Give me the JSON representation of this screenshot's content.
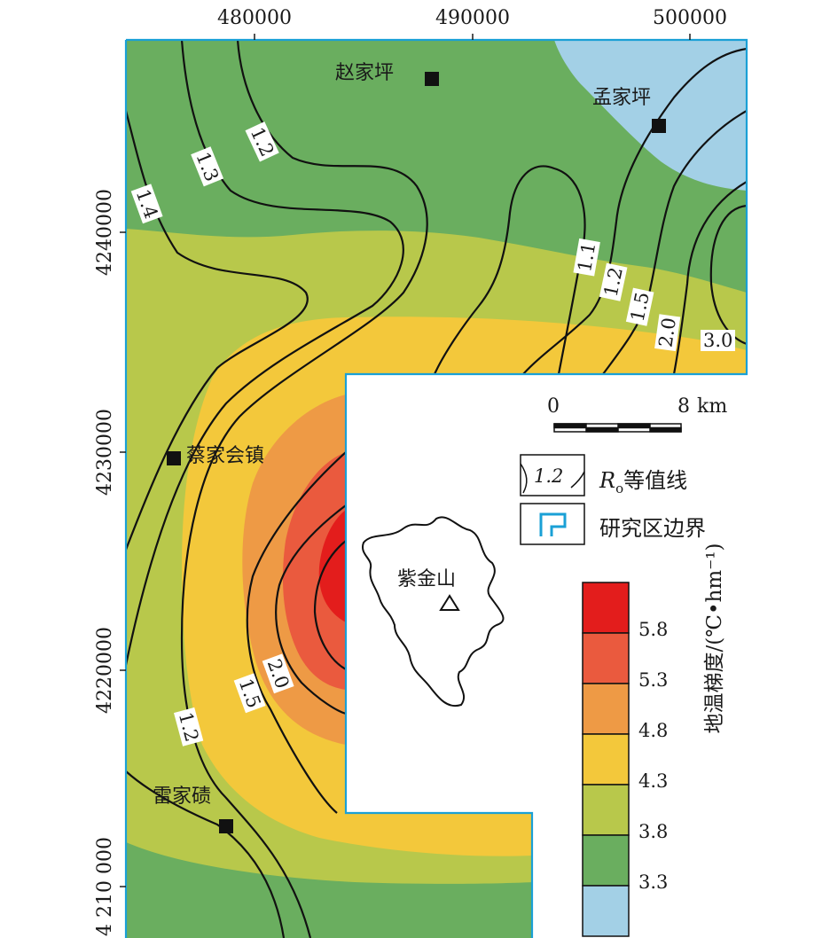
{
  "axes": {
    "x_ticks": [
      "480000",
      "490000",
      "500000"
    ],
    "y_ticks": [
      "4240000",
      "4230000",
      "4220000",
      "4 210 000"
    ]
  },
  "places": [
    {
      "name": "赵家坪"
    },
    {
      "name": "孟家坪"
    },
    {
      "name": "蔡家会镇"
    },
    {
      "name": "雷家碛"
    }
  ],
  "peak": {
    "name": "紫金山"
  },
  "contour_labels": [
    "1.4",
    "1.3",
    "1.2",
    "1.1",
    "1.2",
    "1.5",
    "2.0",
    "3.0",
    "2.0",
    "1.5",
    "1.2"
  ],
  "scale_bar": {
    "start": "0",
    "end": "8",
    "unit": "km"
  },
  "legend": {
    "contour_sample": "1.2",
    "contour_symbol": "R",
    "contour_subscript": "o",
    "contour_text": "等值线",
    "boundary_text": "研究区边界",
    "boundary_color": "#1aa0d6"
  },
  "colorbar": {
    "title": "地温梯度/(℃•hm⁻¹)",
    "labels": [
      "5.8",
      "5.3",
      "4.8",
      "4.3",
      "3.8",
      "3.3"
    ],
    "colors": [
      "#e31d1c",
      "#ea5a3e",
      "#ee9a45",
      "#f3c83b",
      "#b8c84b",
      "#6aae5f",
      "#a3d0e6"
    ]
  }
}
